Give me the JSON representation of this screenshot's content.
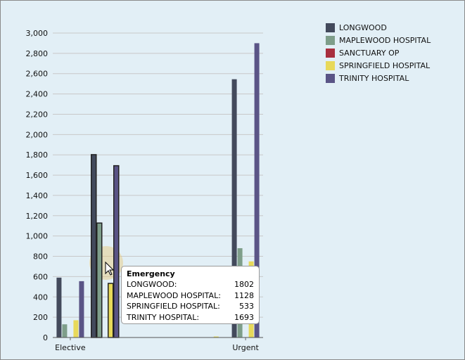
{
  "chart_data": {
    "type": "bar",
    "categories": [
      "Elective",
      "Emergency",
      "",
      "",
      "",
      "Urgent"
    ],
    "category_labels_shown": [
      "Elective",
      "",
      "",
      "",
      "",
      "Urgent"
    ],
    "series": [
      {
        "name": "LONGWOOD",
        "color": "#434a5c",
        "values": [
          590,
          1802,
          0,
          3,
          0,
          2545
        ]
      },
      {
        "name": "MAPLEWOOD HOSPITAL",
        "color": "#7e9e8a",
        "values": [
          130,
          1128,
          0,
          3,
          0,
          880
        ]
      },
      {
        "name": "SANCTUARY OP",
        "color": "#a82e3e",
        "values": [
          0,
          0,
          0,
          0,
          0,
          0
        ]
      },
      {
        "name": "SPRINGFIELD HOSPITAL",
        "color": "#e8d95a",
        "values": [
          170,
          533,
          0,
          0,
          10,
          750
        ]
      },
      {
        "name": "TRINITY HOSPITAL",
        "color": "#5a5486",
        "values": [
          555,
          1693,
          0,
          0,
          0,
          2900
        ]
      }
    ],
    "ylim": [
      0,
      3000
    ],
    "yticks": [
      "0",
      "200",
      "400",
      "600",
      "800",
      "1,000",
      "1,200",
      "1,400",
      "1,600",
      "1,800",
      "2,000",
      "2,200",
      "2,400",
      "2,600",
      "2,800",
      "3,000"
    ],
    "grid": true,
    "legend": "top-right",
    "highlighted_category": "Emergency"
  },
  "tooltip": {
    "title": "Emergency",
    "rows": [
      {
        "label": "LONGWOOD:",
        "value": "1802"
      },
      {
        "label": "MAPLEWOOD HOSPITAL:",
        "value": "1128"
      },
      {
        "label": "SPRINGFIELD HOSPITAL:",
        "value": "533"
      },
      {
        "label": "TRINITY HOSPITAL:",
        "value": "1693"
      }
    ]
  }
}
